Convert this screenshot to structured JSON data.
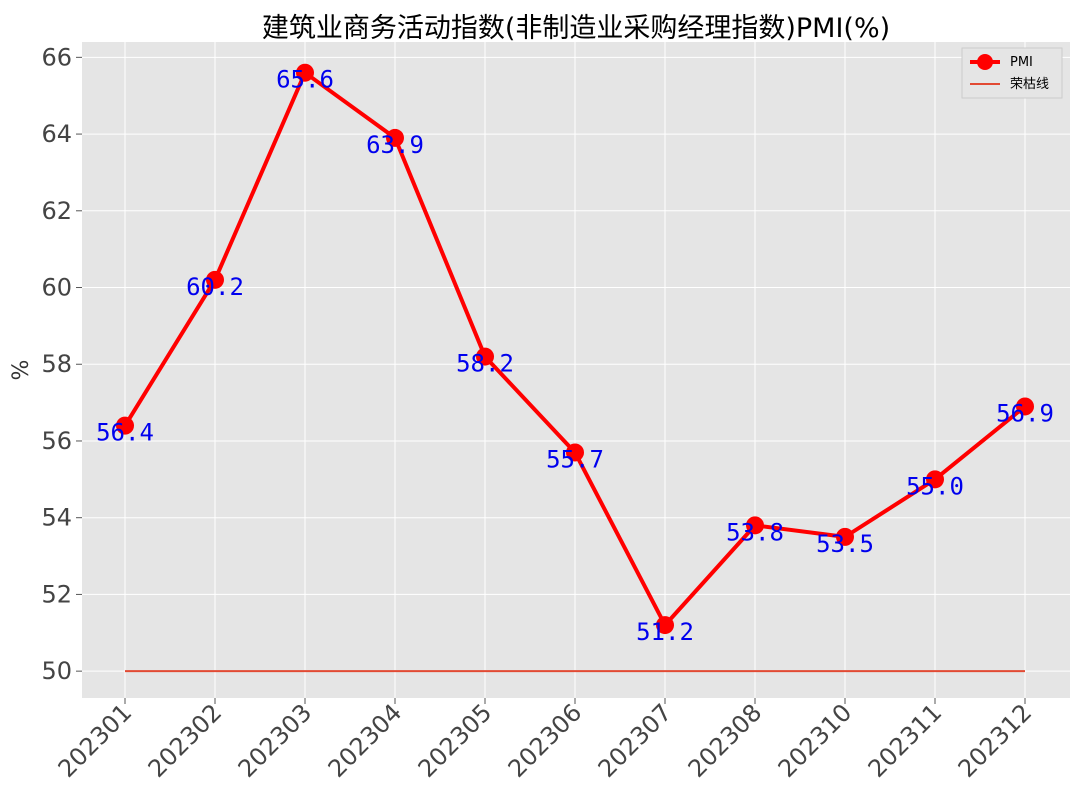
{
  "chart_data": {
    "type": "line",
    "title": "建筑业商务活动指数(非制造业采购经理指数)PMI(%)",
    "ylabel": "%",
    "categories": [
      "202301",
      "202302",
      "202303",
      "202304",
      "202305",
      "202306",
      "202307",
      "202308",
      "202310",
      "202311",
      "202312"
    ],
    "series": [
      {
        "name": "PMI",
        "values": [
          56.4,
          60.2,
          65.6,
          63.9,
          58.2,
          55.7,
          51.2,
          53.8,
          53.5,
          55.0,
          56.9
        ],
        "color": "#ff0000"
      },
      {
        "name": "荣枯线",
        "values": [
          50,
          50,
          50,
          50,
          50,
          50,
          50,
          50,
          50,
          50,
          50
        ],
        "color": "#e24a33"
      }
    ],
    "data_labels": [
      "56.4",
      "60.2",
      "65.6",
      "63.9",
      "58.2",
      "55.7",
      "51.2",
      "53.8",
      "53.5",
      "55.0",
      "56.9"
    ],
    "yticks": [
      50,
      52,
      54,
      56,
      58,
      60,
      62,
      64,
      66
    ],
    "ylim": [
      49.3,
      66.4
    ],
    "grid": true,
    "legend_position": "top-right",
    "colors": {
      "plot_background": "#e5e5e5",
      "grid": "#ffffff",
      "data_label": "#0000ee"
    }
  }
}
